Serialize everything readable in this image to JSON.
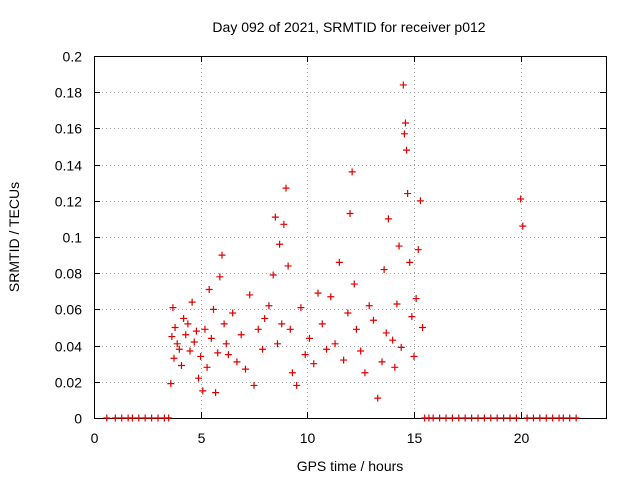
{
  "chart_data": {
    "type": "scatter",
    "title": "Day 092 of 2021, SRMTID for receiver p012",
    "xlabel": "GPS time / hours",
    "ylabel": "SRMTID / TECUs",
    "xlim": [
      0,
      24
    ],
    "ylim": [
      0,
      0.2
    ],
    "x_ticks": [
      0,
      5,
      10,
      15,
      20
    ],
    "x_tick_labels": [
      "0",
      "5",
      "10",
      "15",
      "20"
    ],
    "y_ticks": [
      0,
      0.02,
      0.04,
      0.06,
      0.08,
      0.1,
      0.12,
      0.14,
      0.16,
      0.18,
      0.2
    ],
    "y_tick_labels": [
      "0",
      "0.02",
      "0.04",
      "0.06",
      "0.08",
      "0.1",
      "0.12",
      "0.14",
      "0.16",
      "0.18",
      "0.2"
    ],
    "grid": true,
    "marker": "+",
    "color": "#e00000",
    "series": [
      {
        "name": "SRMTID",
        "x": [
          0.6,
          1.0,
          1.3,
          1.6,
          1.8,
          2.1,
          2.4,
          2.7,
          3.0,
          3.3,
          3.5,
          3.6,
          3.65,
          3.7,
          3.75,
          3.8,
          3.9,
          4.0,
          4.1,
          4.2,
          4.3,
          4.4,
          4.5,
          4.6,
          4.7,
          4.8,
          4.9,
          5.0,
          5.1,
          5.2,
          5.3,
          5.4,
          5.5,
          5.6,
          5.7,
          5.8,
          5.9,
          6.0,
          6.1,
          6.2,
          6.3,
          6.5,
          6.7,
          6.9,
          7.1,
          7.3,
          7.5,
          7.7,
          7.9,
          8.0,
          8.2,
          8.4,
          8.5,
          8.6,
          8.7,
          8.8,
          8.9,
          9.0,
          9.1,
          9.2,
          9.3,
          9.5,
          9.7,
          9.9,
          10.1,
          10.3,
          10.5,
          10.7,
          10.9,
          11.1,
          11.3,
          11.5,
          11.7,
          11.9,
          12.0,
          12.1,
          12.2,
          12.3,
          12.5,
          12.7,
          12.9,
          13.1,
          13.3,
          13.5,
          13.6,
          13.7,
          13.8,
          14.0,
          14.1,
          14.2,
          14.3,
          14.4,
          14.5,
          14.55,
          14.6,
          14.65,
          14.7,
          14.8,
          14.9,
          15.0,
          15.1,
          15.2,
          15.3,
          15.4,
          15.5,
          15.7,
          15.9,
          16.2,
          16.5,
          16.8,
          17.1,
          17.4,
          17.7,
          18.0,
          18.3,
          18.6,
          18.9,
          19.2,
          19.5,
          19.8,
          20.0,
          20.1,
          20.3,
          20.6,
          20.9,
          21.2,
          21.5,
          21.8,
          22.0,
          22.3,
          22.6
        ],
        "y": [
          0,
          0,
          0,
          0,
          0,
          0,
          0,
          0,
          0,
          0,
          0,
          0.019,
          0.045,
          0.061,
          0.033,
          0.05,
          0.041,
          0.038,
          0.029,
          0.055,
          0.046,
          0.052,
          0.037,
          0.064,
          0.042,
          0.048,
          0.022,
          0.034,
          0.015,
          0.049,
          0.028,
          0.071,
          0.044,
          0.06,
          0.014,
          0.036,
          0.078,
          0.09,
          0.052,
          0.041,
          0.035,
          0.058,
          0.031,
          0.046,
          0.027,
          0.068,
          0.018,
          0.049,
          0.038,
          0.055,
          0.062,
          0.079,
          0.111,
          0.041,
          0.096,
          0.052,
          0.107,
          0.127,
          0.084,
          0.049,
          0.025,
          0.018,
          0.061,
          0.035,
          0.044,
          0.03,
          0.069,
          0.052,
          0.038,
          0.067,
          0.041,
          0.086,
          0.032,
          0.058,
          0.113,
          0.136,
          0.074,
          0.049,
          0.037,
          0.025,
          0.062,
          0.054,
          0.011,
          0.031,
          0.082,
          0.047,
          0.11,
          0.043,
          0.028,
          0.063,
          0.095,
          0.039,
          0.184,
          0.157,
          0.163,
          0.148,
          0.124,
          0.086,
          0.056,
          0.034,
          0.066,
          0.093,
          0.12,
          0.05,
          0,
          0,
          0,
          0,
          0,
          0,
          0,
          0,
          0,
          0,
          0,
          0,
          0,
          0,
          0,
          0,
          0.121,
          0.106,
          0,
          0,
          0,
          0,
          0,
          0,
          0,
          0,
          0
        ]
      }
    ]
  }
}
